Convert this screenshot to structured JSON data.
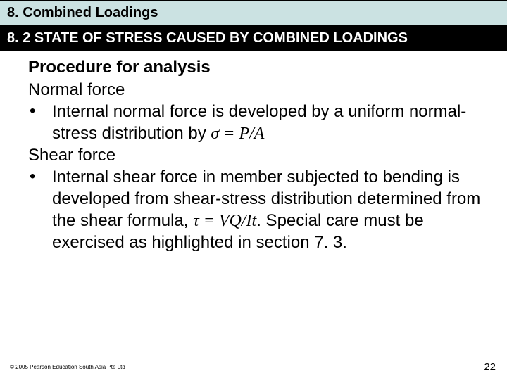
{
  "chapter": {
    "title": "8. Combined Loadings"
  },
  "section": {
    "title": "8. 2 STATE OF STRESS CAUSED BY COMBINED LOADINGS"
  },
  "content": {
    "heading": "Procedure for analysis",
    "sub1": "Normal force",
    "bullet1_a": "Internal normal force is developed by a uniform normal-stress distribution by ",
    "bullet1_formula": "σ = P/A",
    "sub2": "Shear force",
    "bullet2_a": "Internal shear force in member subjected to bending is developed from shear-stress distribution determined from the shear formula, ",
    "bullet2_formula": "τ = VQ/It",
    "bullet2_b": ". Special care must be exercised as highlighted in section 7. 3."
  },
  "footer": {
    "copyright": "© 2005 Pearson Education South Asia Pte Ltd",
    "page": "22"
  },
  "colors": {
    "chapter_bg": "#cbe2e2",
    "section_bg": "#000000",
    "section_fg": "#ffffff",
    "text": "#000000",
    "page_bg": "#ffffff"
  }
}
